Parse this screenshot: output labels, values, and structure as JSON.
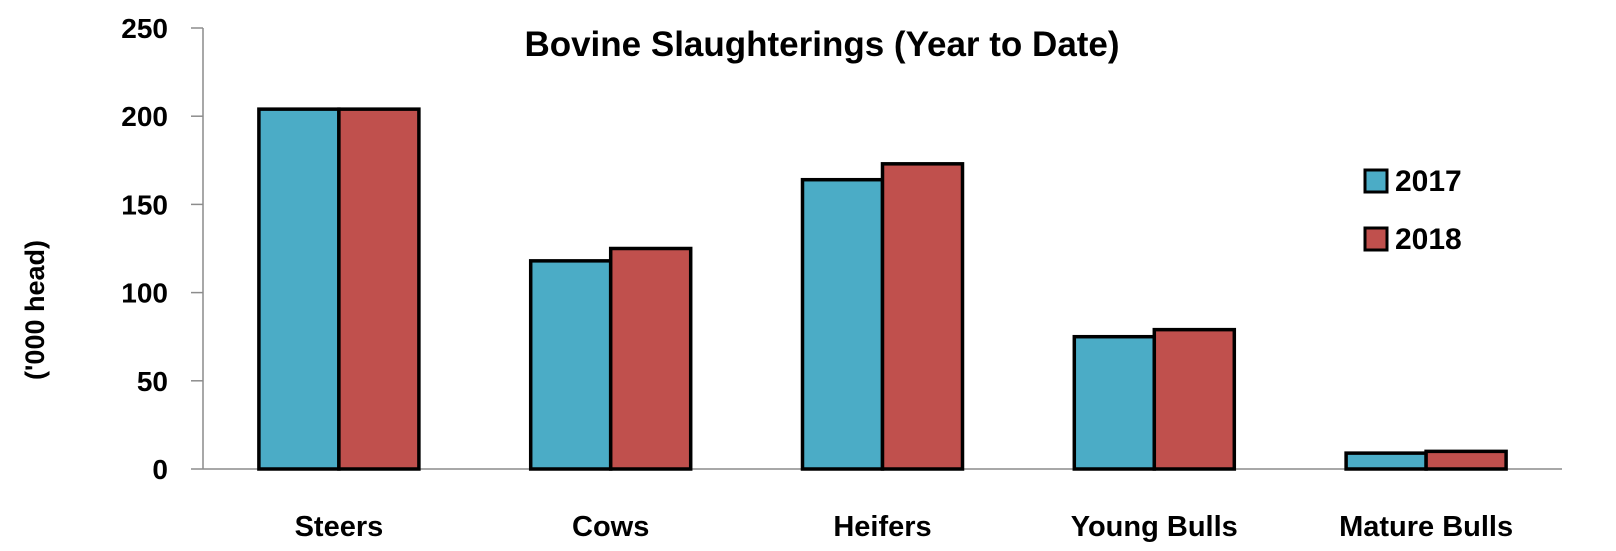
{
  "chart_data": {
    "type": "bar",
    "title": "Bovine Slaughterings (Year to Date)",
    "xlabel": "",
    "ylabel": "('000 head)",
    "categories": [
      "Steers",
      "Cows",
      "Heifers",
      "Young Bulls",
      "Mature Bulls"
    ],
    "series": [
      {
        "name": "2017",
        "color": "#4bacc6",
        "values": [
          204,
          118,
          164,
          75,
          9
        ]
      },
      {
        "name": "2018",
        "color": "#c0504d",
        "values": [
          204,
          125,
          173,
          79,
          10
        ]
      }
    ],
    "ylim": [
      0,
      250
    ],
    "yticks": [
      "0",
      "50",
      "100",
      "150",
      "200",
      "250"
    ],
    "grid": false,
    "legend_position": "right"
  }
}
